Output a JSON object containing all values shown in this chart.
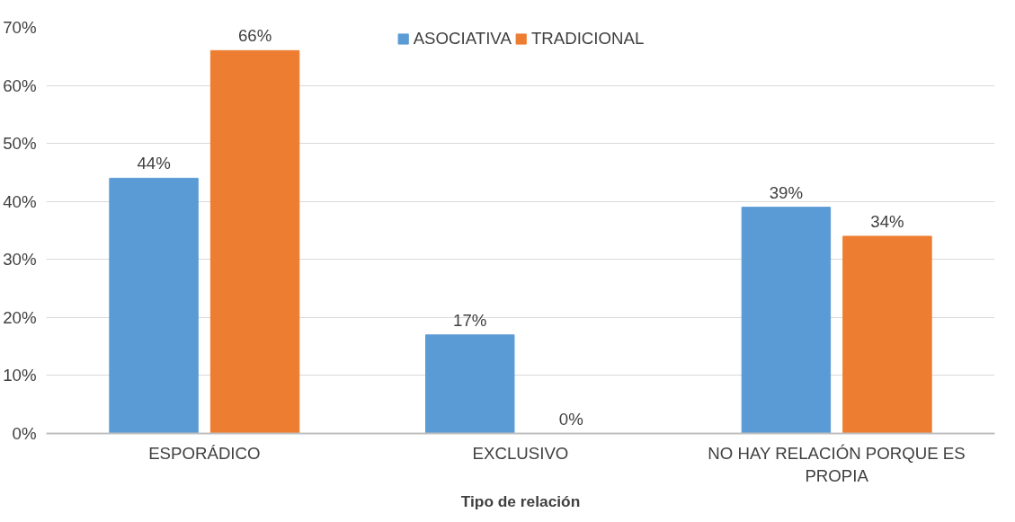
{
  "chart_data": {
    "type": "bar",
    "xlabel": "Tipo de relación",
    "categories": [
      "ESPORÁDICO",
      "EXCLUSIVO",
      "NO HAY RELACIÓN PORQUE ES PROPIA"
    ],
    "series": [
      {
        "name": "ASOCIATIVA",
        "color": "#5b9bd5",
        "values": [
          44,
          17,
          39
        ],
        "value_labels": [
          "44%",
          "17%",
          "39%"
        ]
      },
      {
        "name": "TRADICIONAL",
        "color": "#ed7d31",
        "values": [
          66,
          0,
          34
        ],
        "value_labels": [
          "66%",
          "0%",
          "34%"
        ]
      }
    ],
    "ylim": [
      0,
      70
    ],
    "yticks": [
      {
        "value": 0,
        "label": "0%"
      },
      {
        "value": 10,
        "label": "10%"
      },
      {
        "value": 20,
        "label": "20%"
      },
      {
        "value": 30,
        "label": "30%"
      },
      {
        "value": 40,
        "label": "40%"
      },
      {
        "value": 50,
        "label": "50%"
      },
      {
        "value": 60,
        "label": "60%"
      },
      {
        "value": 70,
        "label": "70%"
      }
    ],
    "grid": "y",
    "legend": "top"
  }
}
